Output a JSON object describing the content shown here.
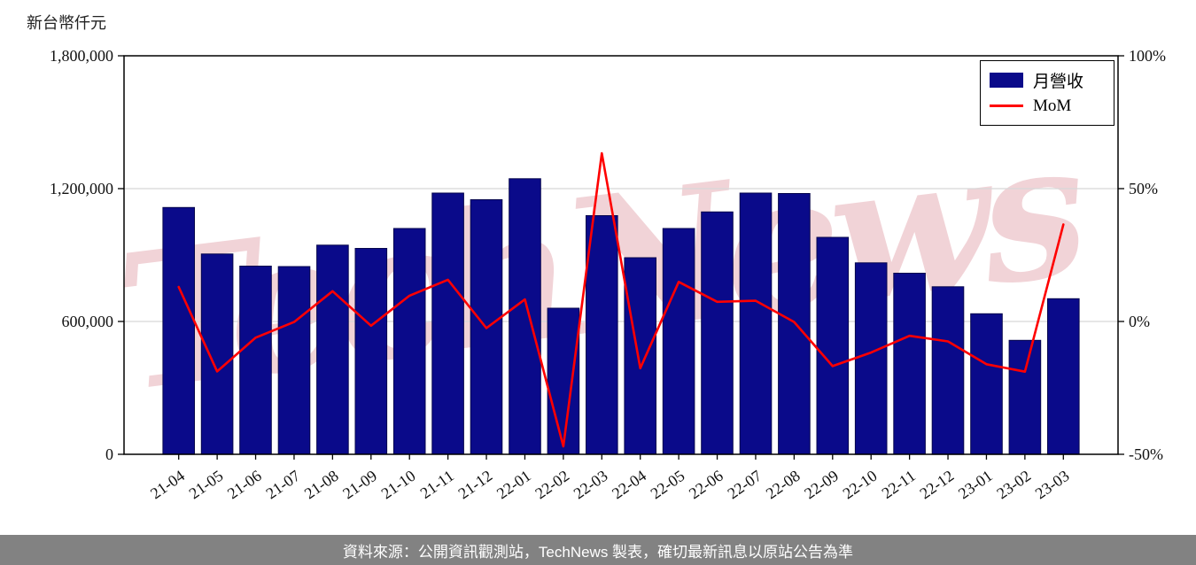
{
  "watermark": {
    "text": "TechNews"
  },
  "footer": {
    "text": "資料來源：公開資訊觀測站，TechNews 製表，確切最新訊息以原站公告為準"
  },
  "colors": {
    "bar": "#0a0a8a",
    "bar_edge": "#06064d",
    "line": "#ff0000",
    "grid": "#d8d8d8",
    "axis": "#000000",
    "footer_bg": "#828282",
    "watermark": "#d9808c"
  },
  "chart_data": {
    "type": "bar",
    "title": "",
    "xlabel": "",
    "grid": "horizontal",
    "legend_position": "top-right",
    "categories": [
      "21-04",
      "21-05",
      "21-06",
      "21-07",
      "21-08",
      "21-09",
      "21-10",
      "21-11",
      "21-12",
      "22-01",
      "22-02",
      "22-03",
      "22-04",
      "22-05",
      "22-06",
      "22-07",
      "22-08",
      "22-09",
      "22-10",
      "22-11",
      "22-12",
      "23-01",
      "23-02",
      "23-03"
    ],
    "series": [
      {
        "name": "月營收",
        "type": "bar",
        "axis": "left",
        "color": "#0a0a8a",
        "values": [
          1115000,
          905000,
          850000,
          848000,
          945000,
          930000,
          1020000,
          1180000,
          1150000,
          1245000,
          660000,
          1078000,
          888000,
          1020000,
          1095000,
          1180000,
          1178000,
          980000,
          865000,
          818000,
          757000,
          635000,
          515000,
          703000
        ]
      },
      {
        "name": "MoM",
        "type": "line",
        "axis": "right",
        "color": "#ff0000",
        "values": [
          13.0,
          -18.8,
          -6.1,
          -0.2,
          11.4,
          -1.6,
          9.7,
          15.7,
          -2.5,
          8.3,
          -47.0,
          63.3,
          -17.6,
          14.9,
          7.4,
          7.8,
          -0.2,
          -16.8,
          -11.7,
          -5.4,
          -7.5,
          -16.1,
          -18.9,
          36.5
        ]
      }
    ],
    "axes": {
      "left": {
        "label": "新台幣仟元",
        "min": 0,
        "max": 1800000,
        "ticks": [
          {
            "label": "0",
            "value": 0
          },
          {
            "label": "600,000",
            "value": 600000
          },
          {
            "label": "1,200,000",
            "value": 1200000
          },
          {
            "label": "1,800,000",
            "value": 1800000
          }
        ]
      },
      "right": {
        "label": "",
        "min": -50,
        "max": 100,
        "ticks": [
          {
            "label": "-50%",
            "value": -50
          },
          {
            "label": "0%",
            "value": 0
          },
          {
            "label": "50%",
            "value": 50
          },
          {
            "label": "100%",
            "value": 100
          }
        ]
      }
    }
  }
}
